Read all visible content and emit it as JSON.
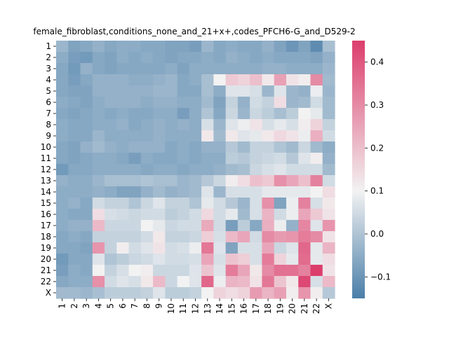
{
  "chart_data": {
    "type": "heatmap",
    "title": "female_fibroblast,conditions_none_and_21+x+,codes_PFCH6-G_and_D529-2",
    "xlabel": "",
    "ylabel": "",
    "row_labels": [
      "1",
      "2",
      "3",
      "4",
      "5",
      "6",
      "7",
      "8",
      "9",
      "10",
      "11",
      "12",
      "13",
      "14",
      "15",
      "16",
      "17",
      "18",
      "19",
      "20",
      "21",
      "22",
      "X"
    ],
    "col_labels": [
      "1",
      "2",
      "3",
      "4",
      "5",
      "6",
      "7",
      "8",
      "9",
      "10",
      "11",
      "12",
      "13",
      "14",
      "15",
      "16",
      "17",
      "18",
      "19",
      "20",
      "21",
      "22",
      "X"
    ],
    "colorbar": {
      "min": -0.15,
      "max": 0.45,
      "ticks": [
        -0.1,
        0.0,
        0.1,
        0.2,
        0.3,
        0.4
      ],
      "tick_labels": [
        "−0.1",
        "0.0",
        "0.1",
        "0.2",
        "0.3",
        "0.4"
      ],
      "low_color": "#4a7ea8",
      "mid_color": "#f2f2f2",
      "high_color": "#dc3e6c"
    },
    "values": [
      [
        -0.03,
        -0.07,
        -0.06,
        -0.04,
        -0.06,
        -0.05,
        -0.05,
        -0.06,
        -0.06,
        -0.07,
        -0.07,
        -0.08,
        -0.03,
        -0.06,
        -0.05,
        -0.06,
        -0.06,
        -0.04,
        -0.07,
        -0.1,
        -0.07,
        -0.12,
        -0.01
      ],
      [
        -0.05,
        -0.08,
        -0.09,
        -0.06,
        -0.07,
        -0.05,
        -0.06,
        -0.05,
        -0.06,
        -0.07,
        -0.06,
        -0.06,
        -0.05,
        -0.06,
        -0.04,
        -0.05,
        -0.06,
        -0.05,
        -0.06,
        -0.06,
        -0.06,
        -0.07,
        -0.04
      ],
      [
        -0.06,
        -0.09,
        -0.04,
        -0.06,
        -0.07,
        -0.06,
        -0.06,
        -0.06,
        -0.06,
        -0.05,
        -0.07,
        -0.05,
        -0.05,
        -0.05,
        -0.05,
        -0.05,
        -0.05,
        -0.04,
        -0.04,
        -0.05,
        -0.05,
        -0.05,
        -0.03
      ],
      [
        -0.06,
        -0.08,
        -0.06,
        -0.04,
        -0.04,
        -0.04,
        -0.05,
        -0.05,
        -0.04,
        -0.03,
        -0.06,
        -0.05,
        -0.01,
        0.1,
        0.18,
        0.16,
        0.2,
        0.12,
        0.26,
        0.13,
        0.11,
        0.3,
        -0.02
      ],
      [
        -0.06,
        -0.07,
        -0.07,
        -0.04,
        -0.04,
        -0.04,
        -0.04,
        -0.04,
        -0.03,
        -0.03,
        -0.06,
        -0.06,
        -0.01,
        -0.05,
        0.07,
        0.07,
        0.06,
        -0.03,
        0.07,
        -0.03,
        -0.04,
        0.09,
        -0.03
      ],
      [
        -0.05,
        -0.06,
        -0.07,
        -0.05,
        -0.04,
        -0.04,
        -0.04,
        -0.05,
        -0.04,
        -0.04,
        -0.05,
        -0.05,
        -0.02,
        -0.07,
        0.03,
        -0.04,
        0.05,
        0.03,
        0.14,
        -0.03,
        -0.02,
        0.05,
        -0.02
      ],
      [
        -0.06,
        -0.07,
        -0.06,
        -0.05,
        -0.06,
        -0.05,
        -0.06,
        -0.06,
        -0.05,
        -0.05,
        -0.08,
        -0.05,
        0.0,
        -0.06,
        0.04,
        -0.03,
        0.04,
        0.02,
        -0.01,
        0.02,
        0.1,
        0.08,
        -0.02
      ],
      [
        -0.05,
        -0.06,
        -0.06,
        -0.05,
        -0.05,
        -0.04,
        -0.06,
        -0.05,
        -0.04,
        -0.05,
        -0.04,
        -0.05,
        0.06,
        -0.03,
        0.07,
        0.09,
        0.13,
        0.06,
        0.08,
        0.06,
        0.11,
        0.16,
        0.03
      ],
      [
        -0.05,
        -0.06,
        -0.06,
        -0.03,
        -0.05,
        -0.05,
        -0.05,
        -0.05,
        -0.04,
        -0.05,
        -0.05,
        -0.05,
        0.12,
        -0.02,
        0.12,
        0.07,
        0.08,
        0.12,
        0.15,
        0.13,
        0.09,
        0.23,
        0.05
      ],
      [
        -0.06,
        -0.07,
        -0.04,
        -0.02,
        -0.04,
        -0.05,
        -0.04,
        -0.04,
        -0.04,
        -0.06,
        -0.05,
        -0.06,
        -0.04,
        -0.04,
        0.01,
        -0.02,
        0.03,
        0.03,
        0.0,
        -0.02,
        0.04,
        -0.02,
        -0.05
      ],
      [
        -0.06,
        -0.07,
        -0.06,
        -0.05,
        -0.05,
        -0.06,
        -0.08,
        -0.05,
        -0.06,
        -0.06,
        -0.05,
        -0.06,
        -0.05,
        -0.05,
        0.02,
        0.01,
        0.03,
        0.04,
        0.05,
        0.01,
        0.07,
        0.11,
        -0.04
      ],
      [
        -0.09,
        -0.06,
        -0.06,
        -0.05,
        -0.05,
        -0.05,
        -0.05,
        -0.06,
        -0.05,
        -0.05,
        -0.06,
        -0.05,
        -0.05,
        -0.04,
        -0.02,
        -0.01,
        0.04,
        0.06,
        0.07,
        0.05,
        0.05,
        0.05,
        -0.02
      ],
      [
        -0.04,
        -0.05,
        -0.05,
        -0.03,
        -0.01,
        -0.01,
        -0.01,
        0.0,
        -0.01,
        -0.01,
        -0.03,
        -0.02,
        0.01,
        0.04,
        0.11,
        0.14,
        0.2,
        0.18,
        0.29,
        0.25,
        0.2,
        0.32,
        0.05
      ],
      [
        -0.05,
        -0.05,
        -0.05,
        -0.04,
        -0.05,
        -0.07,
        -0.07,
        -0.04,
        -0.02,
        -0.04,
        -0.03,
        -0.02,
        0.07,
        -0.03,
        0.06,
        0.06,
        0.06,
        0.08,
        0.08,
        0.08,
        0.08,
        0.1,
        0.14
      ],
      [
        -0.05,
        -0.04,
        -0.06,
        0.05,
        0.03,
        0.03,
        0.0,
        0.04,
        0.07,
        0.03,
        0.03,
        0.0,
        0.08,
        0.05,
        0.01,
        -0.03,
        0.06,
        0.29,
        -0.07,
        0.09,
        0.32,
        0.06,
        0.12
      ],
      [
        -0.05,
        -0.06,
        -0.06,
        0.14,
        0.06,
        0.05,
        0.04,
        0.05,
        0.05,
        0.02,
        0.03,
        0.05,
        0.15,
        0.05,
        0.08,
        -0.02,
        0.06,
        0.22,
        0.05,
        0.09,
        0.25,
        0.18,
        0.13
      ],
      [
        -0.05,
        -0.04,
        -0.04,
        0.21,
        0.04,
        0.04,
        0.04,
        0.1,
        0.08,
        0.04,
        0.05,
        0.05,
        0.24,
        0.05,
        -0.08,
        0.02,
        -0.06,
        0.23,
        0.09,
        -0.04,
        0.31,
        0.07,
        0.28
      ],
      [
        -0.06,
        -0.05,
        -0.06,
        0.03,
        0.03,
        0.03,
        0.03,
        0.05,
        0.12,
        0.03,
        0.03,
        0.04,
        0.17,
        0.06,
        0.21,
        0.25,
        0.05,
        0.3,
        0.27,
        0.28,
        0.33,
        0.3,
        0.13
      ],
      [
        -0.06,
        -0.06,
        -0.07,
        0.28,
        0.03,
        0.11,
        0.05,
        0.07,
        0.13,
        0.05,
        0.06,
        0.09,
        0.34,
        0.07,
        -0.07,
        0.06,
        0.06,
        0.25,
        0.04,
        0.07,
        0.37,
        0.08,
        0.22
      ],
      [
        -0.09,
        -0.06,
        -0.06,
        0.07,
        0.0,
        0.02,
        0.04,
        0.05,
        0.07,
        0.05,
        0.05,
        0.06,
        0.25,
        0.06,
        0.19,
        0.17,
        0.06,
        0.33,
        0.16,
        0.08,
        0.36,
        0.08,
        0.14
      ],
      [
        -0.08,
        -0.05,
        -0.06,
        0.1,
        0.03,
        0.06,
        0.1,
        0.11,
        0.04,
        0.04,
        0.04,
        0.07,
        0.19,
        0.07,
        0.33,
        0.25,
        0.12,
        0.3,
        0.35,
        0.35,
        0.32,
        0.45,
        0.13
      ],
      [
        -0.06,
        -0.05,
        -0.05,
        0.29,
        0.05,
        0.07,
        0.06,
        0.12,
        0.21,
        0.04,
        0.1,
        0.07,
        0.37,
        0.09,
        0.22,
        0.21,
        0.13,
        0.34,
        0.19,
        0.12,
        0.43,
        0.06,
        0.21
      ],
      [
        -0.02,
        -0.02,
        -0.03,
        -0.01,
        0.02,
        0.02,
        0.02,
        0.03,
        0.07,
        0.02,
        0.02,
        0.03,
        0.1,
        0.16,
        0.14,
        0.16,
        0.27,
        0.22,
        0.26,
        0.11,
        0.28,
        0.11,
        0.01
      ]
    ]
  }
}
